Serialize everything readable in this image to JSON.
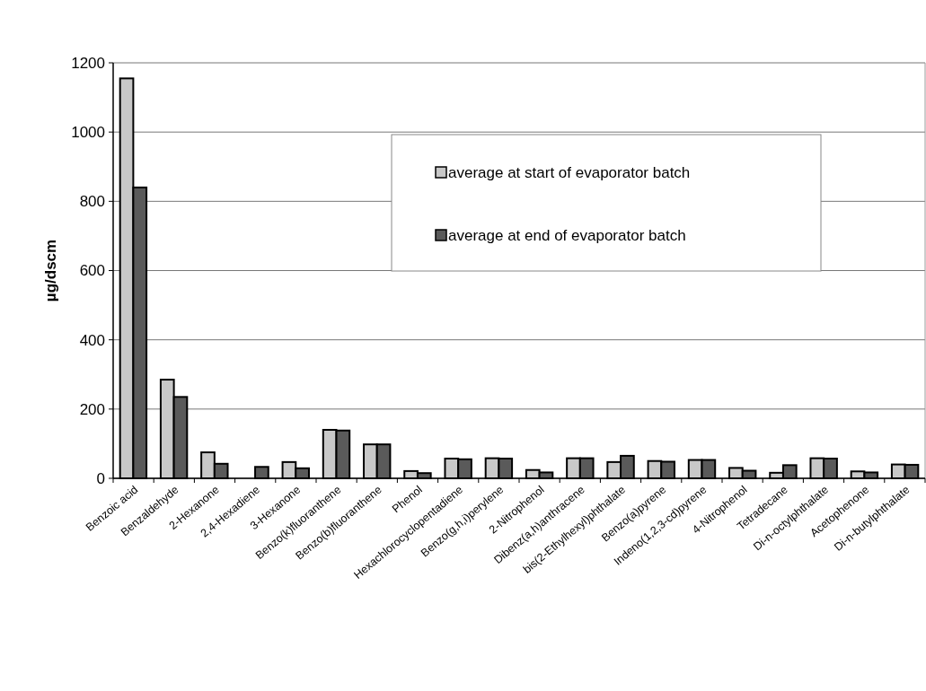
{
  "chart_data": {
    "type": "bar",
    "ylabel": "µg/dscm",
    "categories": [
      "Benzoic acid",
      "Benzaldehyde",
      "2-Hexanone",
      "2,4-Hexadiene",
      "3-Hexanone",
      "Benzo(k)fluoranthene",
      "Benzo(b)fluoranthene",
      "Phenol",
      "Hexachlorocyclopentadiene",
      "Benzo(g,h,i)perylene",
      "2-Nitrophenol",
      "Dibenz(a,h)anthracene",
      "bis(2-Ethylhexyl)phthalate",
      "Benzo(a)pyrene",
      "Indeno(1,2,3-cd)pyrene",
      "4-Nitrophenol",
      "Tetradecane",
      "Di-n-octylphthalate",
      "Acetophenone",
      "Di-n-butylphthalate"
    ],
    "series": [
      {
        "name": "average at start of evaporator batch",
        "color": "#c8c8c8",
        "values": [
          1155,
          285,
          75,
          null,
          47,
          140,
          98,
          21,
          57,
          58,
          24,
          58,
          47,
          50,
          53,
          30,
          16,
          58,
          20,
          40
        ]
      },
      {
        "name": "average at end of evaporator batch",
        "color": "#5a5a5a",
        "values": [
          840,
          235,
          42,
          33,
          29,
          138,
          98,
          15,
          55,
          57,
          17,
          58,
          65,
          48,
          53,
          22,
          38,
          57,
          17,
          39
        ]
      }
    ],
    "ylim": [
      0,
      1200
    ],
    "yticks": [
      0,
      200,
      400,
      600,
      800,
      1000,
      1200
    ],
    "grid": "y",
    "legend": "top right"
  }
}
